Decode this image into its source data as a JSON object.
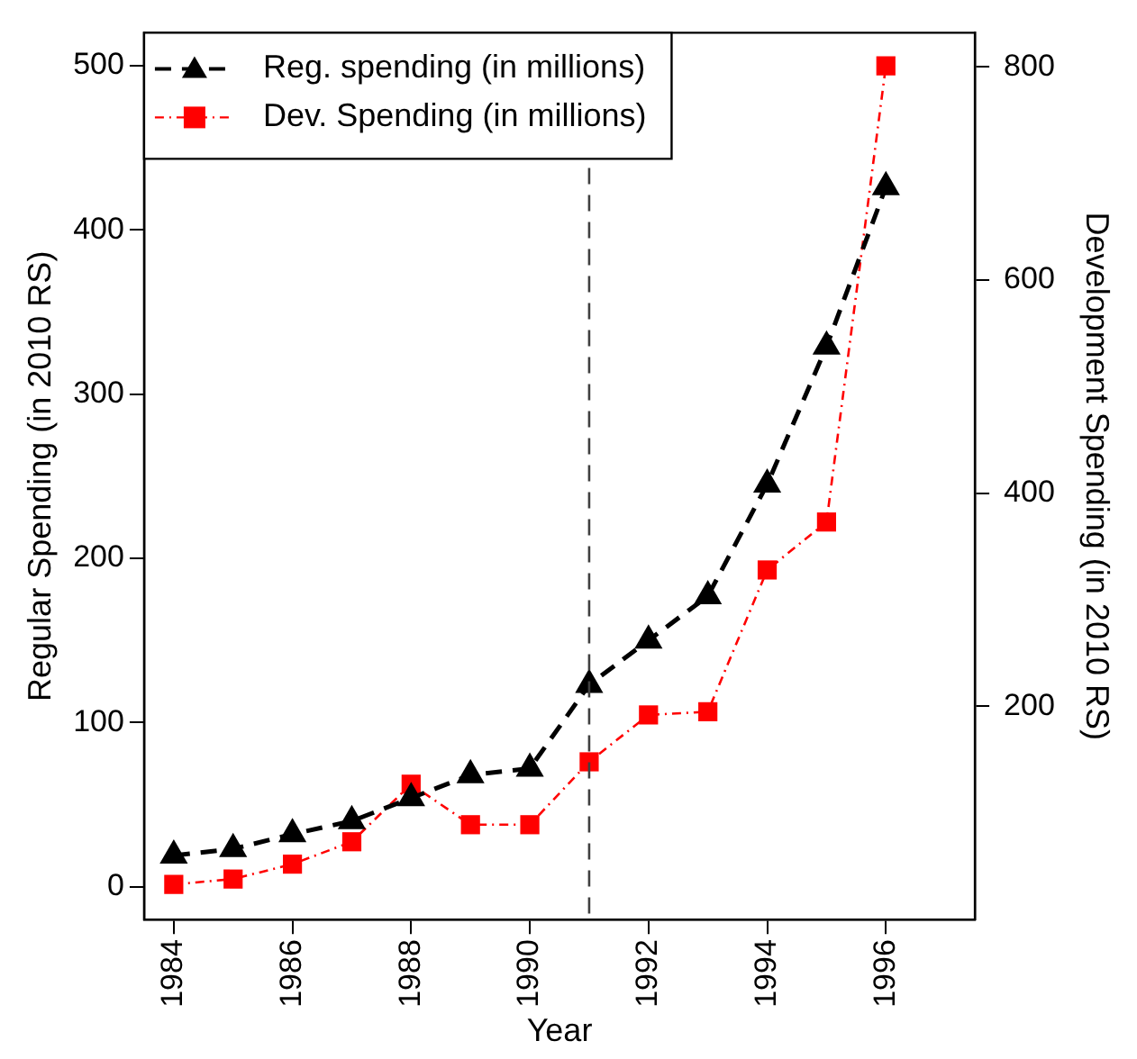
{
  "chart_data": {
    "type": "line",
    "xlabel": "Year",
    "ylabel": "Regular Spending (in 2010 RS)",
    "y2label": "Development Spending (in 2010 RS)",
    "x": [
      1984,
      1985,
      1986,
      1987,
      1988,
      1989,
      1990,
      1991,
      1992,
      1993,
      1994,
      1995,
      1996
    ],
    "series": [
      {
        "name": "Reg. spending (in millions)",
        "color": "#000000",
        "marker": "triangle",
        "line_style": "dashed",
        "values": [
          19,
          23,
          32,
          40,
          54,
          68,
          72,
          123,
          150,
          177,
          245,
          329,
          426
        ]
      },
      {
        "name": "Dev. Spending (in millions)",
        "color": "#ff0000",
        "marker": "square",
        "line_style": "dotted",
        "axis": "y2",
        "values": [
          33,
          38,
          52,
          73,
          127,
          89,
          89,
          148,
          192,
          195,
          328,
          373,
          801
        ]
      }
    ],
    "xlim": [
      1983.5,
      1997.5
    ],
    "xticks": [
      1984,
      1986,
      1988,
      1990,
      1992,
      1994,
      1996
    ],
    "ylim": [
      -20,
      520
    ],
    "yticks": [
      0,
      100,
      200,
      300,
      400,
      500
    ],
    "y2lim": [
      0,
      832
    ],
    "y2ticks": [
      200,
      400,
      600,
      800
    ],
    "ref_lines": [
      {
        "axis": "x",
        "value": 1991,
        "color": "#404040",
        "line_style": "dashed"
      }
    ],
    "grid": false,
    "legend": "top left"
  }
}
